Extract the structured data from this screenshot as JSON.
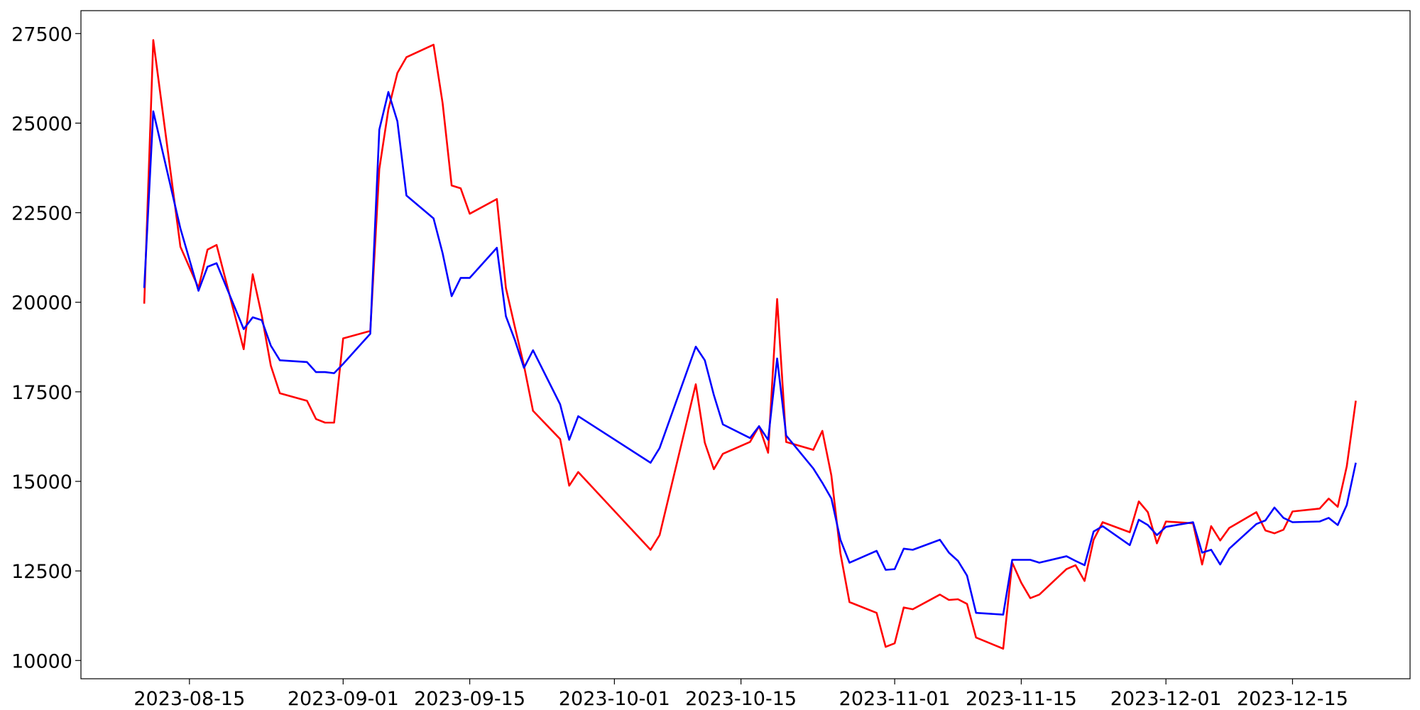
{
  "chart_data": {
    "type": "line",
    "x": [
      "2023-08-10",
      "2023-08-11",
      "2023-08-14",
      "2023-08-16",
      "2023-08-17",
      "2023-08-18",
      "2023-08-21",
      "2023-08-22",
      "2023-08-23",
      "2023-08-24",
      "2023-08-25",
      "2023-08-28",
      "2023-08-29",
      "2023-08-30",
      "2023-08-31",
      "2023-09-01",
      "2023-09-04",
      "2023-09-05",
      "2023-09-06",
      "2023-09-07",
      "2023-09-08",
      "2023-09-11",
      "2023-09-12",
      "2023-09-13",
      "2023-09-14",
      "2023-09-15",
      "2023-09-18",
      "2023-09-19",
      "2023-09-20",
      "2023-09-21",
      "2023-09-22",
      "2023-09-25",
      "2023-09-26",
      "2023-09-27",
      "2023-10-05",
      "2023-10-06",
      "2023-10-10",
      "2023-10-11",
      "2023-10-12",
      "2023-10-13",
      "2023-10-16",
      "2023-10-17",
      "2023-10-18",
      "2023-10-19",
      "2023-10-20",
      "2023-10-23",
      "2023-10-24",
      "2023-10-25",
      "2023-10-26",
      "2023-10-27",
      "2023-10-30",
      "2023-10-31",
      "2023-11-01",
      "2023-11-02",
      "2023-11-03",
      "2023-11-06",
      "2023-11-07",
      "2023-11-08",
      "2023-11-09",
      "2023-11-10",
      "2023-11-13",
      "2023-11-14",
      "2023-11-15",
      "2023-11-16",
      "2023-11-17",
      "2023-11-20",
      "2023-11-21",
      "2023-11-22",
      "2023-11-23",
      "2023-11-24",
      "2023-11-27",
      "2023-11-28",
      "2023-11-29",
      "2023-11-30",
      "2023-12-01",
      "2023-12-04",
      "2023-12-05",
      "2023-12-06",
      "2023-12-07",
      "2023-12-08",
      "2023-12-11",
      "2023-12-12",
      "2023-12-13",
      "2023-12-14",
      "2023-12-15",
      "2023-12-18",
      "2023-12-19",
      "2023-12-20",
      "2023-12-21",
      "2023-12-22"
    ],
    "series": [
      {
        "color": "#ff0000",
        "values": [
          19960,
          27320,
          21550,
          20400,
          21470,
          21600,
          18690,
          20780,
          19630,
          18230,
          17460,
          17250,
          16740,
          16640,
          16640,
          18990,
          19200,
          23720,
          25380,
          26400,
          26840,
          27190,
          25560,
          23260,
          23180,
          22470,
          22880,
          20400,
          19300,
          18230,
          16970,
          16180,
          14880,
          15260,
          13090,
          13500,
          17710,
          16080,
          15340,
          15770,
          16100,
          16540,
          15800,
          20090,
          16100,
          15880,
          16410,
          15160,
          12990,
          11630,
          11330,
          10380,
          10480,
          11480,
          11430,
          11840,
          11690,
          11710,
          11580,
          10640,
          10330,
          12730,
          12170,
          11740,
          11840,
          12550,
          12660,
          12220,
          13370,
          13860,
          13580,
          14440,
          14140,
          13270,
          13880,
          13830,
          12680,
          13750,
          13350,
          13700,
          14140,
          13630,
          13550,
          13650,
          14160,
          14240,
          14520,
          14290,
          15420,
          17250
        ]
      },
      {
        "color": "#0000ff",
        "values": [
          20400,
          25330,
          22060,
          20320,
          20990,
          21090,
          19250,
          19580,
          19500,
          18790,
          18380,
          18330,
          18050,
          18050,
          18020,
          18280,
          19120,
          24820,
          25870,
          25050,
          22980,
          22340,
          21370,
          20170,
          20680,
          20680,
          21520,
          19610,
          18940,
          18170,
          18660,
          17150,
          16160,
          16820,
          15520,
          15930,
          18760,
          18380,
          17410,
          16590,
          16210,
          16540,
          16160,
          18430,
          16280,
          15360,
          14960,
          14520,
          13370,
          12730,
          13060,
          12530,
          12550,
          13120,
          13090,
          13370,
          13010,
          12780,
          12370,
          11330,
          11280,
          12810,
          12810,
          12810,
          12730,
          12910,
          12780,
          12660,
          13600,
          13750,
          13220,
          13930,
          13780,
          13500,
          13730,
          13860,
          13010,
          13090,
          12680,
          13120,
          13810,
          13910,
          14270,
          13980,
          13860,
          13880,
          13980,
          13780,
          14340,
          15520
        ]
      }
    ],
    "xlim": [
      "2023-08-03",
      "2023-12-28"
    ],
    "xticks": [
      "2023-08-15",
      "2023-09-01",
      "2023-09-15",
      "2023-10-01",
      "2023-10-15",
      "2023-11-01",
      "2023-11-15",
      "2023-12-01",
      "2023-12-15"
    ],
    "ylim": [
      9490,
      28140
    ],
    "yticks": [
      10000,
      12500,
      15000,
      17500,
      20000,
      22500,
      25000,
      27500
    ],
    "grid": false
  }
}
